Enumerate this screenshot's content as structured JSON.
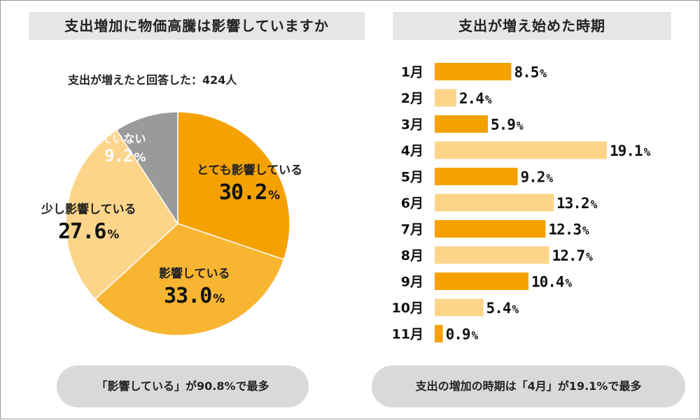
{
  "chart_data": [
    {
      "type": "pie",
      "title": "支出増加に物価高騰は影響していますか",
      "subtitle": "支出が増えたと回答した：424人",
      "slices": [
        {
          "label": "とても影響している",
          "value": 30.2,
          "color": "#F5A200"
        },
        {
          "label": "影響している",
          "value": 33.0,
          "color": "#F8B531"
        },
        {
          "label": "少し影響している",
          "value": 27.6,
          "color": "#FDD58A"
        },
        {
          "label": "影響していない",
          "value": 9.2,
          "color": "#9A9A9A"
        }
      ],
      "unit": "%",
      "summary": "「影響している」が90.8%で最多"
    },
    {
      "type": "bar",
      "orientation": "horizontal",
      "title": "支出が増え始めた時期",
      "categories": [
        "1月",
        "2月",
        "3月",
        "4月",
        "5月",
        "6月",
        "7月",
        "8月",
        "9月",
        "10月",
        "11月"
      ],
      "values": [
        8.5,
        2.4,
        5.9,
        19.1,
        9.2,
        13.2,
        12.3,
        12.7,
        10.4,
        5.4,
        0.9
      ],
      "value_labels": [
        "8.5",
        "2.4",
        "5.9",
        "19.1",
        "9.2",
        "13.2",
        "12.3",
        "12.7",
        "10.4",
        "5.4",
        "0.9"
      ],
      "unit": "%",
      "xlim": [
        0,
        19.1
      ],
      "colors": [
        "#F5A200",
        "#FDD58A"
      ],
      "summary": "支出の増加の時期は「4月」が19.1%で最多"
    }
  ]
}
